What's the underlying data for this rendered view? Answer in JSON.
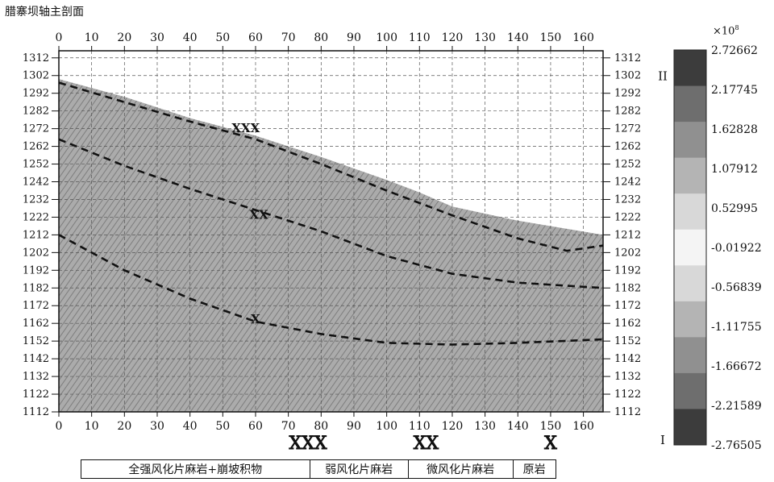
{
  "title": "腊寨坝轴主剖面",
  "colorbar": {
    "unit_base": "×10",
    "unit_exp": "8",
    "labels": [
      "2.72662",
      "2.17745",
      "1.62828",
      "1.07912",
      "0.52995",
      "-0.01922",
      "-0.56839",
      "-1.11755",
      "-1.66672",
      "-2.21589",
      "-2.76505"
    ],
    "colors": [
      "#3c3c3c",
      "#6e6e6e",
      "#909090",
      "#b4b4b4",
      "#d8d8d8",
      "#f4f4f4",
      "#d8d8d8",
      "#b4b4b4",
      "#909090",
      "#6e6e6e",
      "#3c3c3c"
    ]
  },
  "chart_data": {
    "type": "heatmap",
    "x_ticks": [
      0,
      10,
      20,
      30,
      40,
      50,
      60,
      70,
      80,
      90,
      100,
      110,
      120,
      130,
      140,
      150,
      160
    ],
    "y_ticks": [
      1312,
      1302,
      1292,
      1282,
      1272,
      1262,
      1252,
      1242,
      1232,
      1222,
      1212,
      1202,
      1192,
      1182,
      1172,
      1162,
      1152,
      1142,
      1132,
      1122,
      1112
    ],
    "xlim": [
      0,
      166
    ],
    "ylim": [
      1112,
      1316
    ],
    "grid": true,
    "boundaries": [
      {
        "label": "XXX",
        "points": [
          [
            0,
            1298
          ],
          [
            20,
            1287
          ],
          [
            40,
            1276
          ],
          [
            60,
            1266
          ],
          [
            80,
            1252
          ],
          [
            100,
            1237
          ],
          [
            120,
            1223
          ],
          [
            140,
            1210
          ],
          [
            155,
            1203
          ],
          [
            166,
            1206
          ]
        ]
      },
      {
        "label": "XX",
        "points": [
          [
            0,
            1266
          ],
          [
            20,
            1251
          ],
          [
            40,
            1238
          ],
          [
            60,
            1226
          ],
          [
            80,
            1214
          ],
          [
            100,
            1200
          ],
          [
            120,
            1190
          ],
          [
            140,
            1185
          ],
          [
            166,
            1182
          ]
        ]
      },
      {
        "label": "X",
        "points": [
          [
            0,
            1212
          ],
          [
            20,
            1192
          ],
          [
            40,
            1176
          ],
          [
            60,
            1163
          ],
          [
            80,
            1156
          ],
          [
            100,
            1151
          ],
          [
            120,
            1150
          ],
          [
            140,
            1151
          ],
          [
            166,
            1153
          ]
        ]
      }
    ],
    "curve_labels": [
      {
        "text": "XXX",
        "x": 57,
        "y": 1270
      },
      {
        "text": "XX",
        "x": 61,
        "y": 1221
      },
      {
        "text": "X",
        "x": 60,
        "y": 1162
      }
    ],
    "bottom_labels": [
      {
        "text": "XXX",
        "x": 76
      },
      {
        "text": "XX",
        "x": 112
      },
      {
        "text": "X",
        "x": 150
      }
    ],
    "side_labels": {
      "top": "II",
      "bottom": "I"
    }
  },
  "zones": [
    {
      "text": "全强风化片麻岩+崩坡积物",
      "from": 7,
      "to": 77
    },
    {
      "text": "弱风化片麻岩",
      "from": 77,
      "to": 107
    },
    {
      "text": "微风化片麻岩",
      "from": 107,
      "to": 139
    },
    {
      "text": "原岩",
      "from": 139,
      "to": 152
    }
  ]
}
